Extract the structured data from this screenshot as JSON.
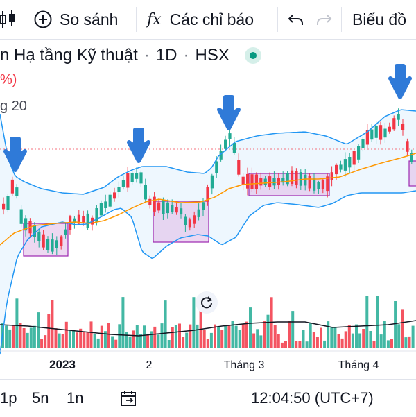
{
  "toolbar": {
    "compare_label": "So sánh",
    "indicators_label": "Các chỉ báo",
    "indicators_icon": "fx",
    "chart_label": "Biểu đồ"
  },
  "symbol": {
    "name": "n Hạ tầng Kỹ thuật",
    "interval": "1D",
    "exchange": "HSX",
    "change_pct": "%)",
    "indicator_label": "g 20"
  },
  "chart_data": {
    "type": "candlestick",
    "x_labels": [
      "2023",
      "2",
      "Tháng 3",
      "Tháng 4"
    ],
    "overlays": [
      "Bollinger Bands (20)",
      "volume",
      "volume moving average"
    ],
    "colors": {
      "up": "#22ab94",
      "down": "#f23645",
      "band": "#2196f3",
      "basis": "#ff9800",
      "box": "#9c27b0",
      "arrow": "#2f7ad8"
    }
  },
  "bottom": {
    "range_1p": "1p",
    "range_5n": "5n",
    "range_1n": "1n",
    "time": "12:04:50 (UTC+7)"
  }
}
